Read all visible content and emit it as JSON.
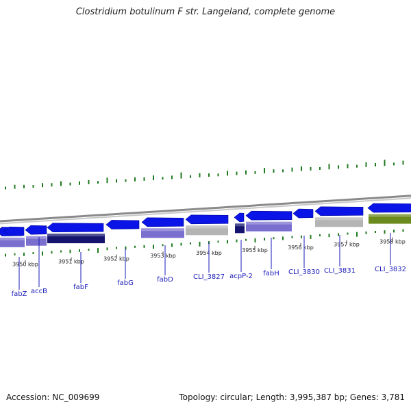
{
  "title": "Clostridium botulinum F str. Langeland, complete genome",
  "footer": {
    "accession": "Accession: NC_009699",
    "summary": "Topology: circular; Length: 3,995,387 bp; Genes: 3,781"
  },
  "colors": {
    "gene_arrow": "#0a14e6",
    "backbone": "#8a8a8a",
    "tick": "#1f7a1f",
    "label": "#1a1ab8",
    "cog_purple": "#7a6fcf",
    "cog_navy": "#14146e",
    "cog_gray": "#b4b4b4",
    "cog_olive": "#6b8a1e"
  },
  "kbp_labels": [
    "3950 kbp",
    "3951 kbp",
    "3952 kbp",
    "3953 kbp",
    "3954 kbp",
    "3955 kbp",
    "3956 kbp",
    "3957 kbp",
    "3958 kbp"
  ],
  "genes": [
    {
      "name": "fabZ"
    },
    {
      "name": "accB"
    },
    {
      "name": "fabF"
    },
    {
      "name": "fabG"
    },
    {
      "name": "fabD"
    },
    {
      "name": "CLI_3827"
    },
    {
      "name": "acpP-2"
    },
    {
      "name": "fabH"
    },
    {
      "name": "CLI_3830"
    },
    {
      "name": "CLI_3831"
    },
    {
      "name": "CLI_3832"
    }
  ]
}
